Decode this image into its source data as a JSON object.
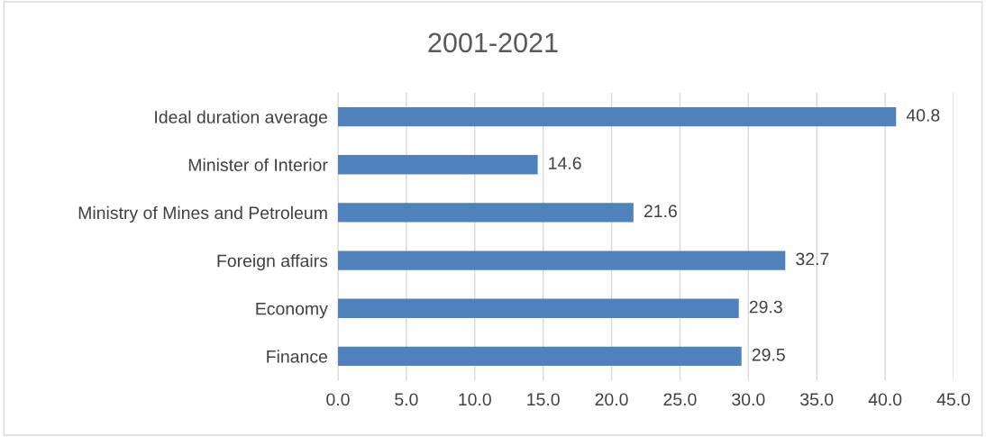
{
  "chart_data": {
    "type": "bar",
    "orientation": "horizontal",
    "title": "2001-2021",
    "categories": [
      "Ideal duration average",
      "Minister of Interior",
      "Ministry of Mines and Petroleum",
      "Foreign affairs",
      "Economy",
      "Finance"
    ],
    "values": [
      40.8,
      14.6,
      21.6,
      32.7,
      29.3,
      29.5
    ],
    "color": "#4f81bd",
    "xlim": [
      0,
      45
    ],
    "xticks": [
      {
        "value": 0,
        "label": "0.0"
      },
      {
        "value": 5,
        "label": "5.0"
      },
      {
        "value": 10,
        "label": "10.0"
      },
      {
        "value": 15,
        "label": "15.0"
      },
      {
        "value": 20,
        "label": "20.0"
      },
      {
        "value": 25,
        "label": "25.0"
      },
      {
        "value": 30,
        "label": "30.0"
      },
      {
        "value": 35,
        "label": "35.0"
      },
      {
        "value": 40,
        "label": "40.0"
      },
      {
        "value": 45,
        "label": "45.0"
      }
    ],
    "grid": "x",
    "data_labels": true
  }
}
